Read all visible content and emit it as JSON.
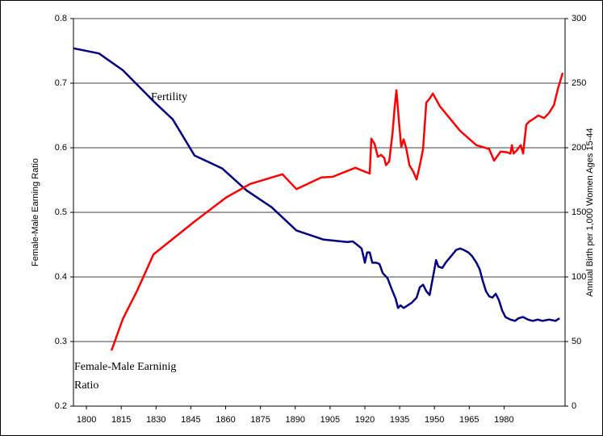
{
  "chart_data": {
    "type": "line",
    "ylabel": "Female-Male Earning Ratio",
    "y2label": "Annual Birth per 1,000 Women Ages 15-44",
    "xlim": [
      1794.4,
      2006.3
    ],
    "xticks": [
      1800,
      1815,
      1830,
      1845,
      1860,
      1875,
      1890,
      1905,
      1920,
      1935,
      1950,
      1965,
      1980
    ],
    "ylim": [
      0.2,
      0.8
    ],
    "yticks": [
      0.2,
      0.3,
      0.4,
      0.5,
      0.6,
      0.7,
      0.8
    ],
    "y2lim": [
      0,
      300
    ],
    "y2ticks": [
      0,
      50,
      100,
      150,
      200,
      250,
      300
    ],
    "grid": true,
    "annotations": [
      {
        "lines": [
          "Fertility"
        ]
      },
      {
        "lines": [
          "Female-Male Earninig",
          "Ratio"
        ]
      }
    ],
    "series": [
      {
        "color": "#000080",
        "axis": "y2",
        "x": [
          1794.4,
          1805.4,
          1815.7,
          1828.9,
          1837.2,
          1846.6,
          1858.5,
          1869,
          1879.8,
          1890.5,
          1902,
          1912.4,
          1914.8,
          1915.9,
          1917.3,
          1918.6,
          1920,
          1921,
          1922.1,
          1923.2,
          1924.9,
          1926.3,
          1927.7,
          1929.8,
          1931.5,
          1933.3,
          1934.3,
          1935.4,
          1936.7,
          1938.5,
          1940.2,
          1942.3,
          1943.7,
          1945.1,
          1946.5,
          1947.9,
          1949.6,
          1950.7,
          1951.7,
          1953.4,
          1954.8,
          1956.2,
          1957.6,
          1959.4,
          1961.1,
          1962.5,
          1964.6,
          1966.3,
          1968.1,
          1969.5,
          1970.8,
          1972.2,
          1973.6,
          1975,
          1976.4,
          1977.8,
          1979.2,
          1980.6,
          1982.7,
          1984.8,
          1986.2,
          1988.2,
          1990.3,
          1992.4,
          1994.5,
          1996.6,
          1999.4,
          2002.2,
          2003.9
        ],
        "values": [
          277,
          273,
          260,
          236,
          222,
          194,
          184,
          167,
          154,
          136,
          129,
          127,
          127.5,
          126,
          124,
          122,
          111,
          119,
          119,
          111,
          111,
          110,
          103,
          99,
          91,
          83,
          76,
          78,
          76,
          78,
          80,
          84,
          92,
          94,
          89,
          86,
          102,
          113,
          108,
          107,
          111,
          114,
          117,
          121,
          122,
          121,
          119,
          116,
          111,
          106,
          97,
          89,
          85,
          84,
          87,
          82,
          74,
          69,
          67,
          66,
          68,
          69,
          67,
          66,
          67,
          66,
          67,
          66,
          68
        ]
      },
      {
        "color": "#ff0000",
        "axis": "y",
        "x": [
          1810.8,
          1815.7,
          1821.9,
          1828.9,
          1846.3,
          1860.2,
          1870.6,
          1884.5,
          1890.5,
          1901.3,
          1906.1,
          1915.9,
          1922.1,
          1922.8,
          1924.2,
          1925.6,
          1927,
          1928.4,
          1929.1,
          1930.5,
          1931.9,
          1932.9,
          1933.6,
          1934.7,
          1935.7,
          1936.7,
          1937.8,
          1939.2,
          1940.9,
          1942.3,
          1943.7,
          1945.1,
          1946.5,
          1947.9,
          1949.3,
          1952.4,
          1961.1,
          1968.1,
          1973.6,
          1975.7,
          1978.5,
          1981.3,
          1982.7,
          1983.4,
          1984.1,
          1985.5,
          1987.2,
          1988.2,
          1989.6,
          1991,
          1992.4,
          1994.8,
          1997.3,
          1999.4,
          2001.5,
          2003.2,
          2005.3
        ],
        "values": [
          0.286,
          0.335,
          0.379,
          0.435,
          0.485,
          0.523,
          0.544,
          0.559,
          0.536,
          0.554,
          0.555,
          0.569,
          0.56,
          0.614,
          0.606,
          0.586,
          0.589,
          0.584,
          0.573,
          0.579,
          0.622,
          0.664,
          0.689,
          0.641,
          0.601,
          0.613,
          0.6,
          0.573,
          0.563,
          0.551,
          0.573,
          0.598,
          0.67,
          0.676,
          0.684,
          0.664,
          0.626,
          0.604,
          0.598,
          0.58,
          0.594,
          0.593,
          0.591,
          0.604,
          0.591,
          0.596,
          0.604,
          0.591,
          0.636,
          0.641,
          0.644,
          0.65,
          0.646,
          0.654,
          0.666,
          0.691,
          0.716
        ]
      }
    ]
  }
}
